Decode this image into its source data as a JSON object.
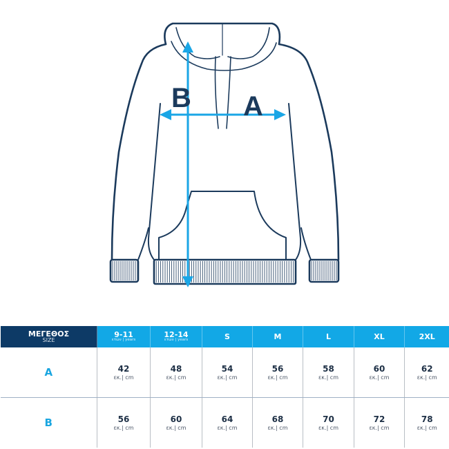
{
  "illustration": {
    "labels": {
      "width": "A",
      "length": "B"
    },
    "colors": {
      "outline": "#1b3a5c",
      "arrow": "#1aa6e6"
    }
  },
  "table": {
    "header": {
      "title": "ΜΕΓΕΘΟΣ",
      "subtitle": "SIZE"
    },
    "columns": [
      {
        "label": "9-11",
        "sub": "ετών | years"
      },
      {
        "label": "12-14",
        "sub": "ετών | years"
      },
      {
        "label": "S",
        "sub": ""
      },
      {
        "label": "M",
        "sub": ""
      },
      {
        "label": "L",
        "sub": ""
      },
      {
        "label": "XL",
        "sub": ""
      },
      {
        "label": "2XL",
        "sub": ""
      }
    ],
    "unit": "εκ.| cm",
    "rows": [
      {
        "label": "A",
        "values": [
          "42",
          "48",
          "54",
          "56",
          "58",
          "60",
          "62"
        ]
      },
      {
        "label": "B",
        "values": [
          "56",
          "60",
          "64",
          "68",
          "70",
          "72",
          "78"
        ]
      }
    ],
    "colors": {
      "header_dark": "#0d3a66",
      "header_blue": "#12a8e6",
      "row_label": "#1aa6e0"
    }
  }
}
